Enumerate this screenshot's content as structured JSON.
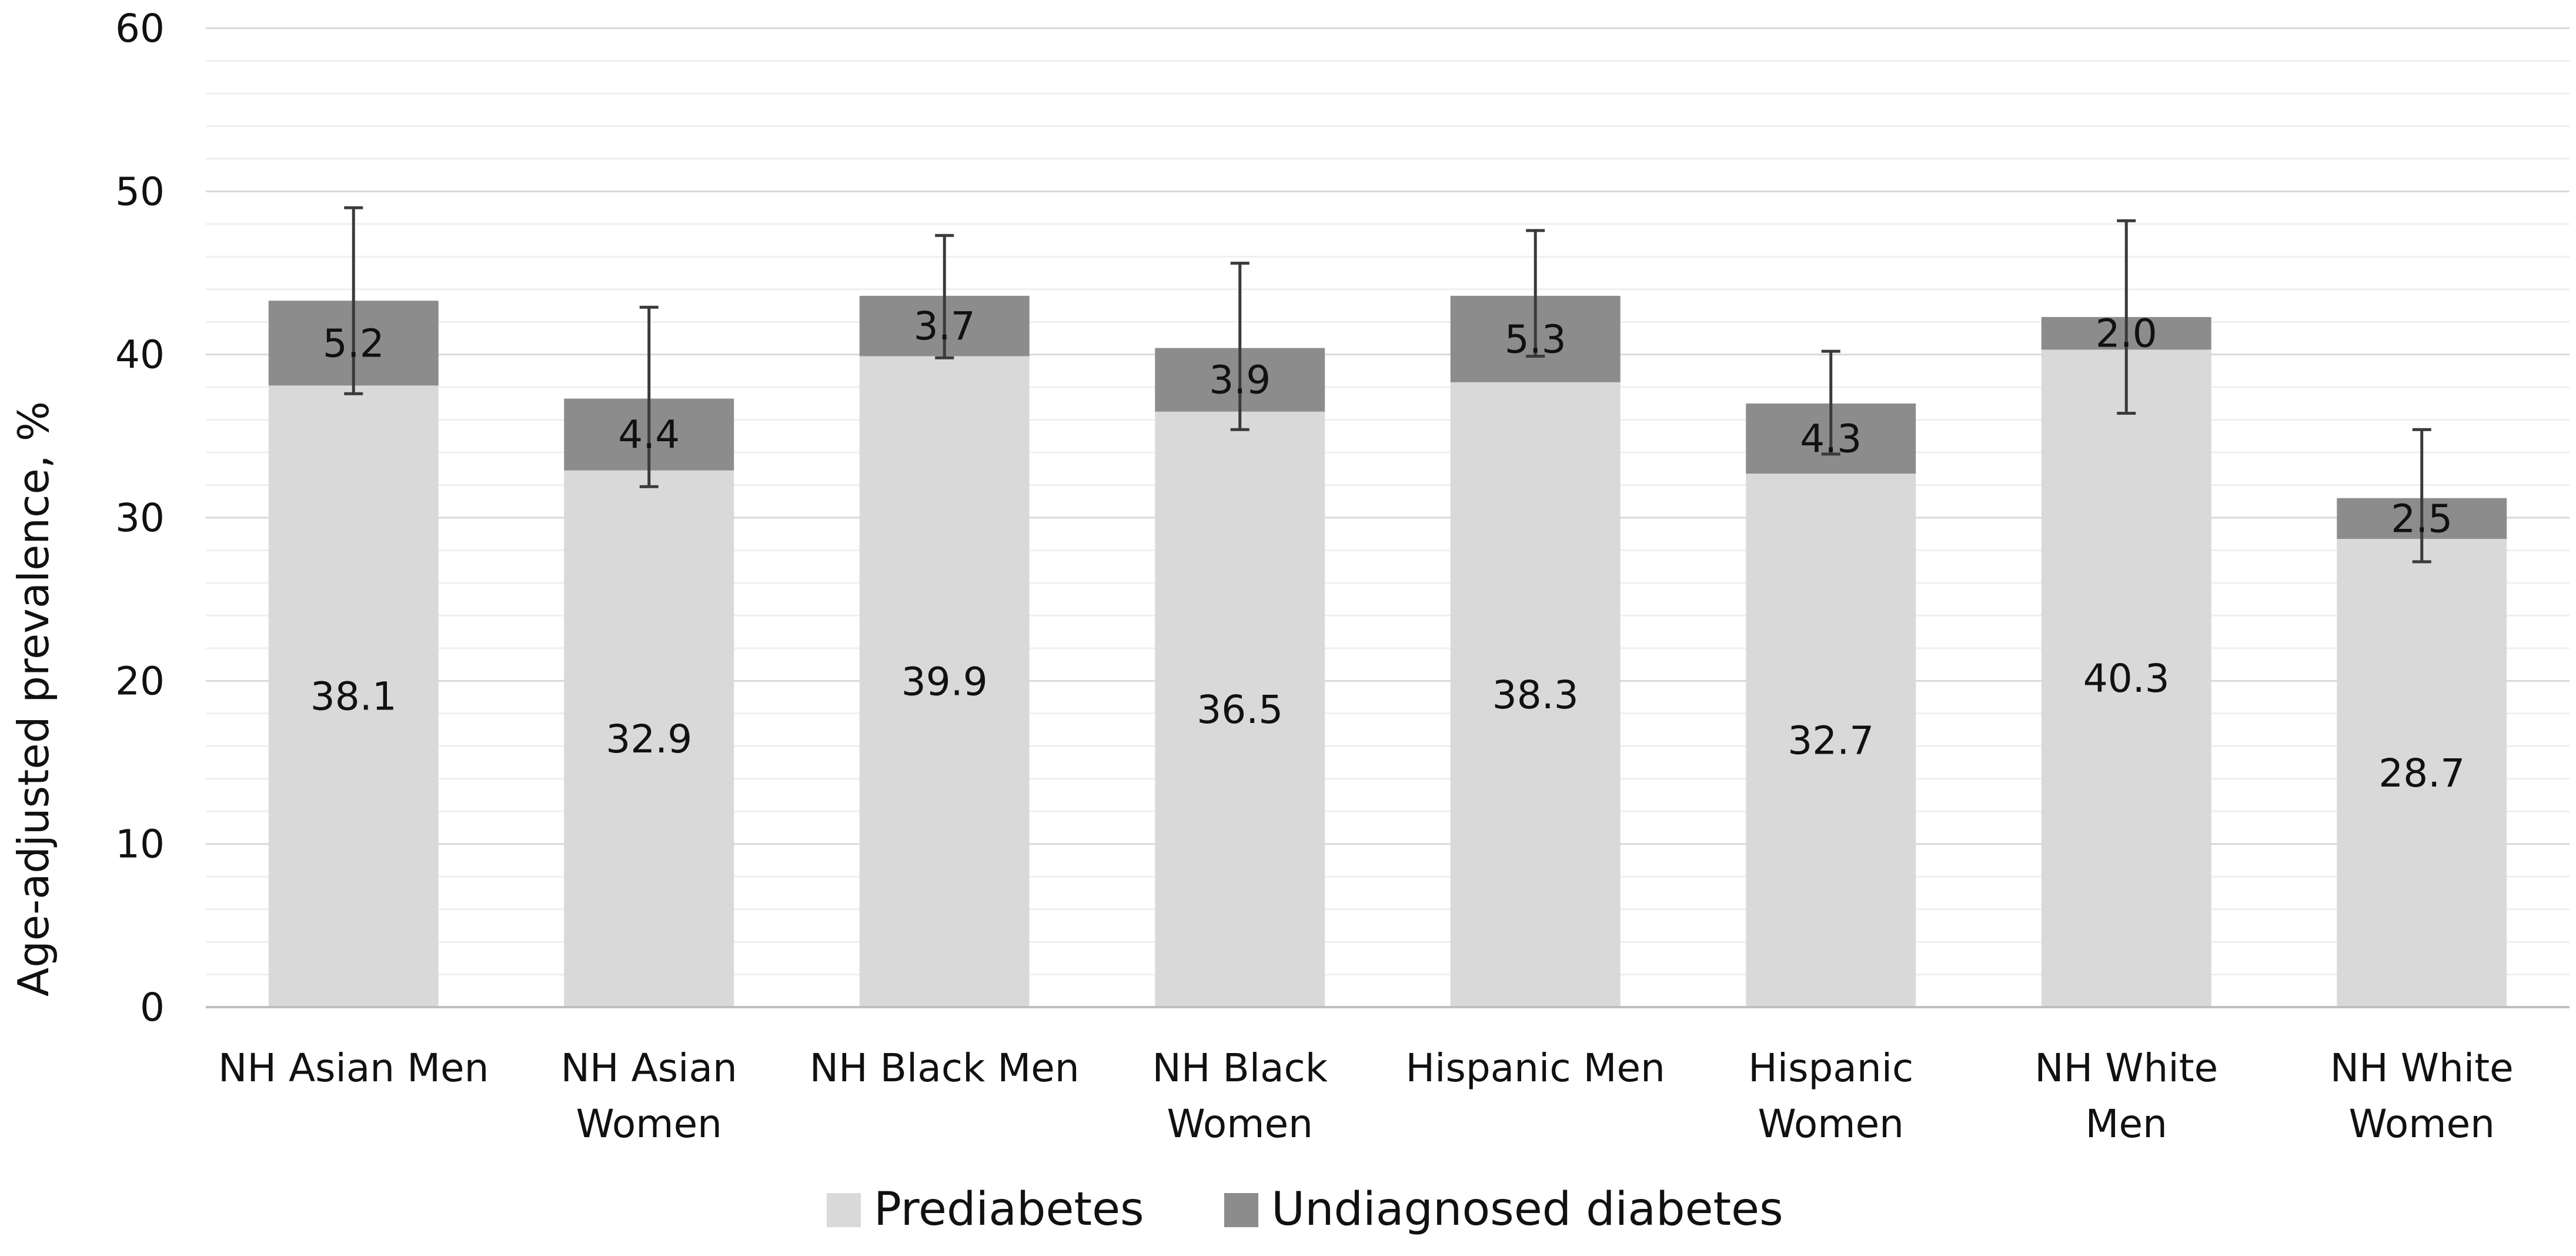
{
  "chart_data": {
    "type": "bar",
    "stacked": true,
    "title": "",
    "xlabel": "",
    "ylabel": "Age-adjusted prevalence, %",
    "ylim": [
      0,
      60
    ],
    "yticks": [
      0,
      10,
      20,
      30,
      40,
      50,
      60
    ],
    "minor_grid_step": 2,
    "grid": true,
    "legend_position": "bottom",
    "categories": [
      [
        "NH Asian Men"
      ],
      [
        "NH Asian",
        "Women"
      ],
      [
        "NH Black Men"
      ],
      [
        "NH Black",
        "Women"
      ],
      [
        "Hispanic Men"
      ],
      [
        "Hispanic",
        "Women"
      ],
      [
        "NH White",
        "Men"
      ],
      [
        "NH White",
        "Women"
      ]
    ],
    "series": [
      {
        "name": "Prediabetes",
        "color": "#d9d9d9",
        "values": [
          38.1,
          32.9,
          39.9,
          36.5,
          38.3,
          32.7,
          40.3,
          28.7
        ],
        "labels": [
          "38.1",
          "32.9",
          "39.9",
          "36.5",
          "38.3",
          "32.7",
          "40.3",
          "28.7"
        ]
      },
      {
        "name": "Undiagnosed diabetes",
        "color": "#8c8c8c",
        "values": [
          5.2,
          4.4,
          3.7,
          3.9,
          5.3,
          4.3,
          2.0,
          2.5
        ],
        "labels": [
          "5.2",
          "4.4",
          "3.7",
          "3.9",
          "5.3",
          "4.3",
          "2.0",
          "2.5"
        ]
      }
    ],
    "error_bars": [
      {
        "low": 37.6,
        "high": 49.0
      },
      {
        "low": 31.9,
        "high": 42.9
      },
      {
        "low": 39.8,
        "high": 47.3
      },
      {
        "low": 35.4,
        "high": 45.6
      },
      {
        "low": 39.9,
        "high": 47.6
      },
      {
        "low": 33.9,
        "high": 40.2
      },
      {
        "low": 36.4,
        "high": 48.2
      },
      {
        "low": 27.3,
        "high": 35.4
      }
    ],
    "error_bar_color": "#3a3a3a"
  }
}
